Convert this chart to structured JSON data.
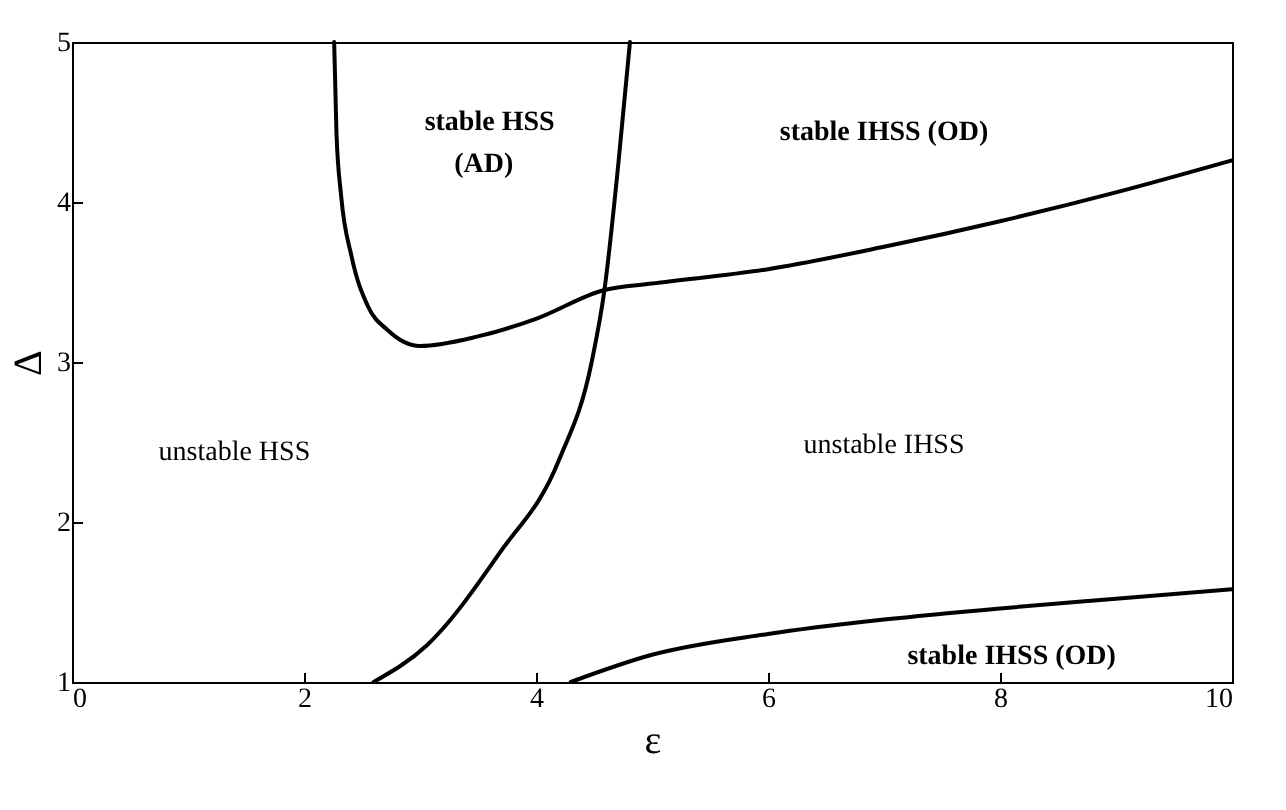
{
  "chart_data": {
    "type": "line",
    "xlabel": "ε",
    "ylabel": "Δ",
    "xlim": [
      0,
      10
    ],
    "ylim": [
      1,
      5
    ],
    "xticks": [
      0,
      2,
      4,
      6,
      8,
      10
    ],
    "yticks": [
      1,
      2,
      3,
      4,
      5
    ],
    "marker": "none",
    "line_style": "solid",
    "series": [
      {
        "color": "#000000",
        "x": [
          2.26,
          2.28,
          2.32,
          2.41,
          2.55,
          2.72,
          3.0,
          3.5,
          4.0,
          4.59,
          5,
          6,
          7,
          8,
          9,
          10
        ],
        "values": [
          5,
          4.43,
          4.04,
          3.66,
          3.35,
          3.2,
          3.1,
          3.16,
          3.27,
          3.45,
          3.49,
          3.58,
          3.72,
          3.88,
          4.06,
          4.26
        ]
      },
      {
        "color": "#000000",
        "x": [
          2.6,
          3.06,
          3.69,
          4.2,
          4.48,
          4.59,
          4.71,
          4.81
        ],
        "values": [
          1,
          1.23,
          1.81,
          2.39,
          3.0,
          3.45,
          4.24,
          5
        ]
      },
      {
        "color": "#000000",
        "x": [
          4.3,
          5,
          6,
          7,
          8,
          9,
          10
        ],
        "values": [
          1,
          1.17,
          1.3,
          1.39,
          1.46,
          1.52,
          1.58
        ]
      }
    ],
    "annotations": [
      "stable HSS",
      "(AD)",
      "stable IHSS (OD)",
      "unstable HSS",
      "unstable IHSS",
      "stable IHSS (OD)"
    ]
  }
}
